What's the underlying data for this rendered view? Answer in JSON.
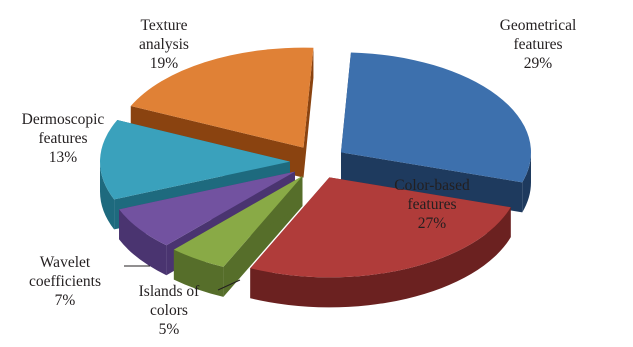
{
  "chart_data": {
    "type": "pie",
    "style": "3d-exploded",
    "title": "",
    "legend": "none",
    "slices": [
      {
        "lines": [
          "Geometrical",
          "features"
        ],
        "pct_label": "29%",
        "value": 29,
        "color": "#3d70ad",
        "side": "#1e3a5e"
      },
      {
        "lines": [
          "Color-based",
          "features"
        ],
        "pct_label": "27%",
        "value": 27,
        "color": "#b03c3a",
        "side": "#6b2120"
      },
      {
        "lines": [
          "Islands of",
          "colors"
        ],
        "pct_label": "5%",
        "value": 5,
        "color": "#89aa46",
        "side": "#566e2a"
      },
      {
        "lines": [
          "Wavelet",
          "coefficients"
        ],
        "pct_label": "7%",
        "value": 7,
        "color": "#7252a0",
        "side": "#4a3470"
      },
      {
        "lines": [
          "Dermoscopic",
          "features"
        ],
        "pct_label": "13%",
        "value": 13,
        "color": "#3aa1bc",
        "side": "#1e6a7e"
      },
      {
        "lines": [
          "Texture",
          "analysis"
        ],
        "pct_label": "19%",
        "value": 19,
        "color": "#e08136",
        "side": "#8a4310"
      }
    ]
  }
}
